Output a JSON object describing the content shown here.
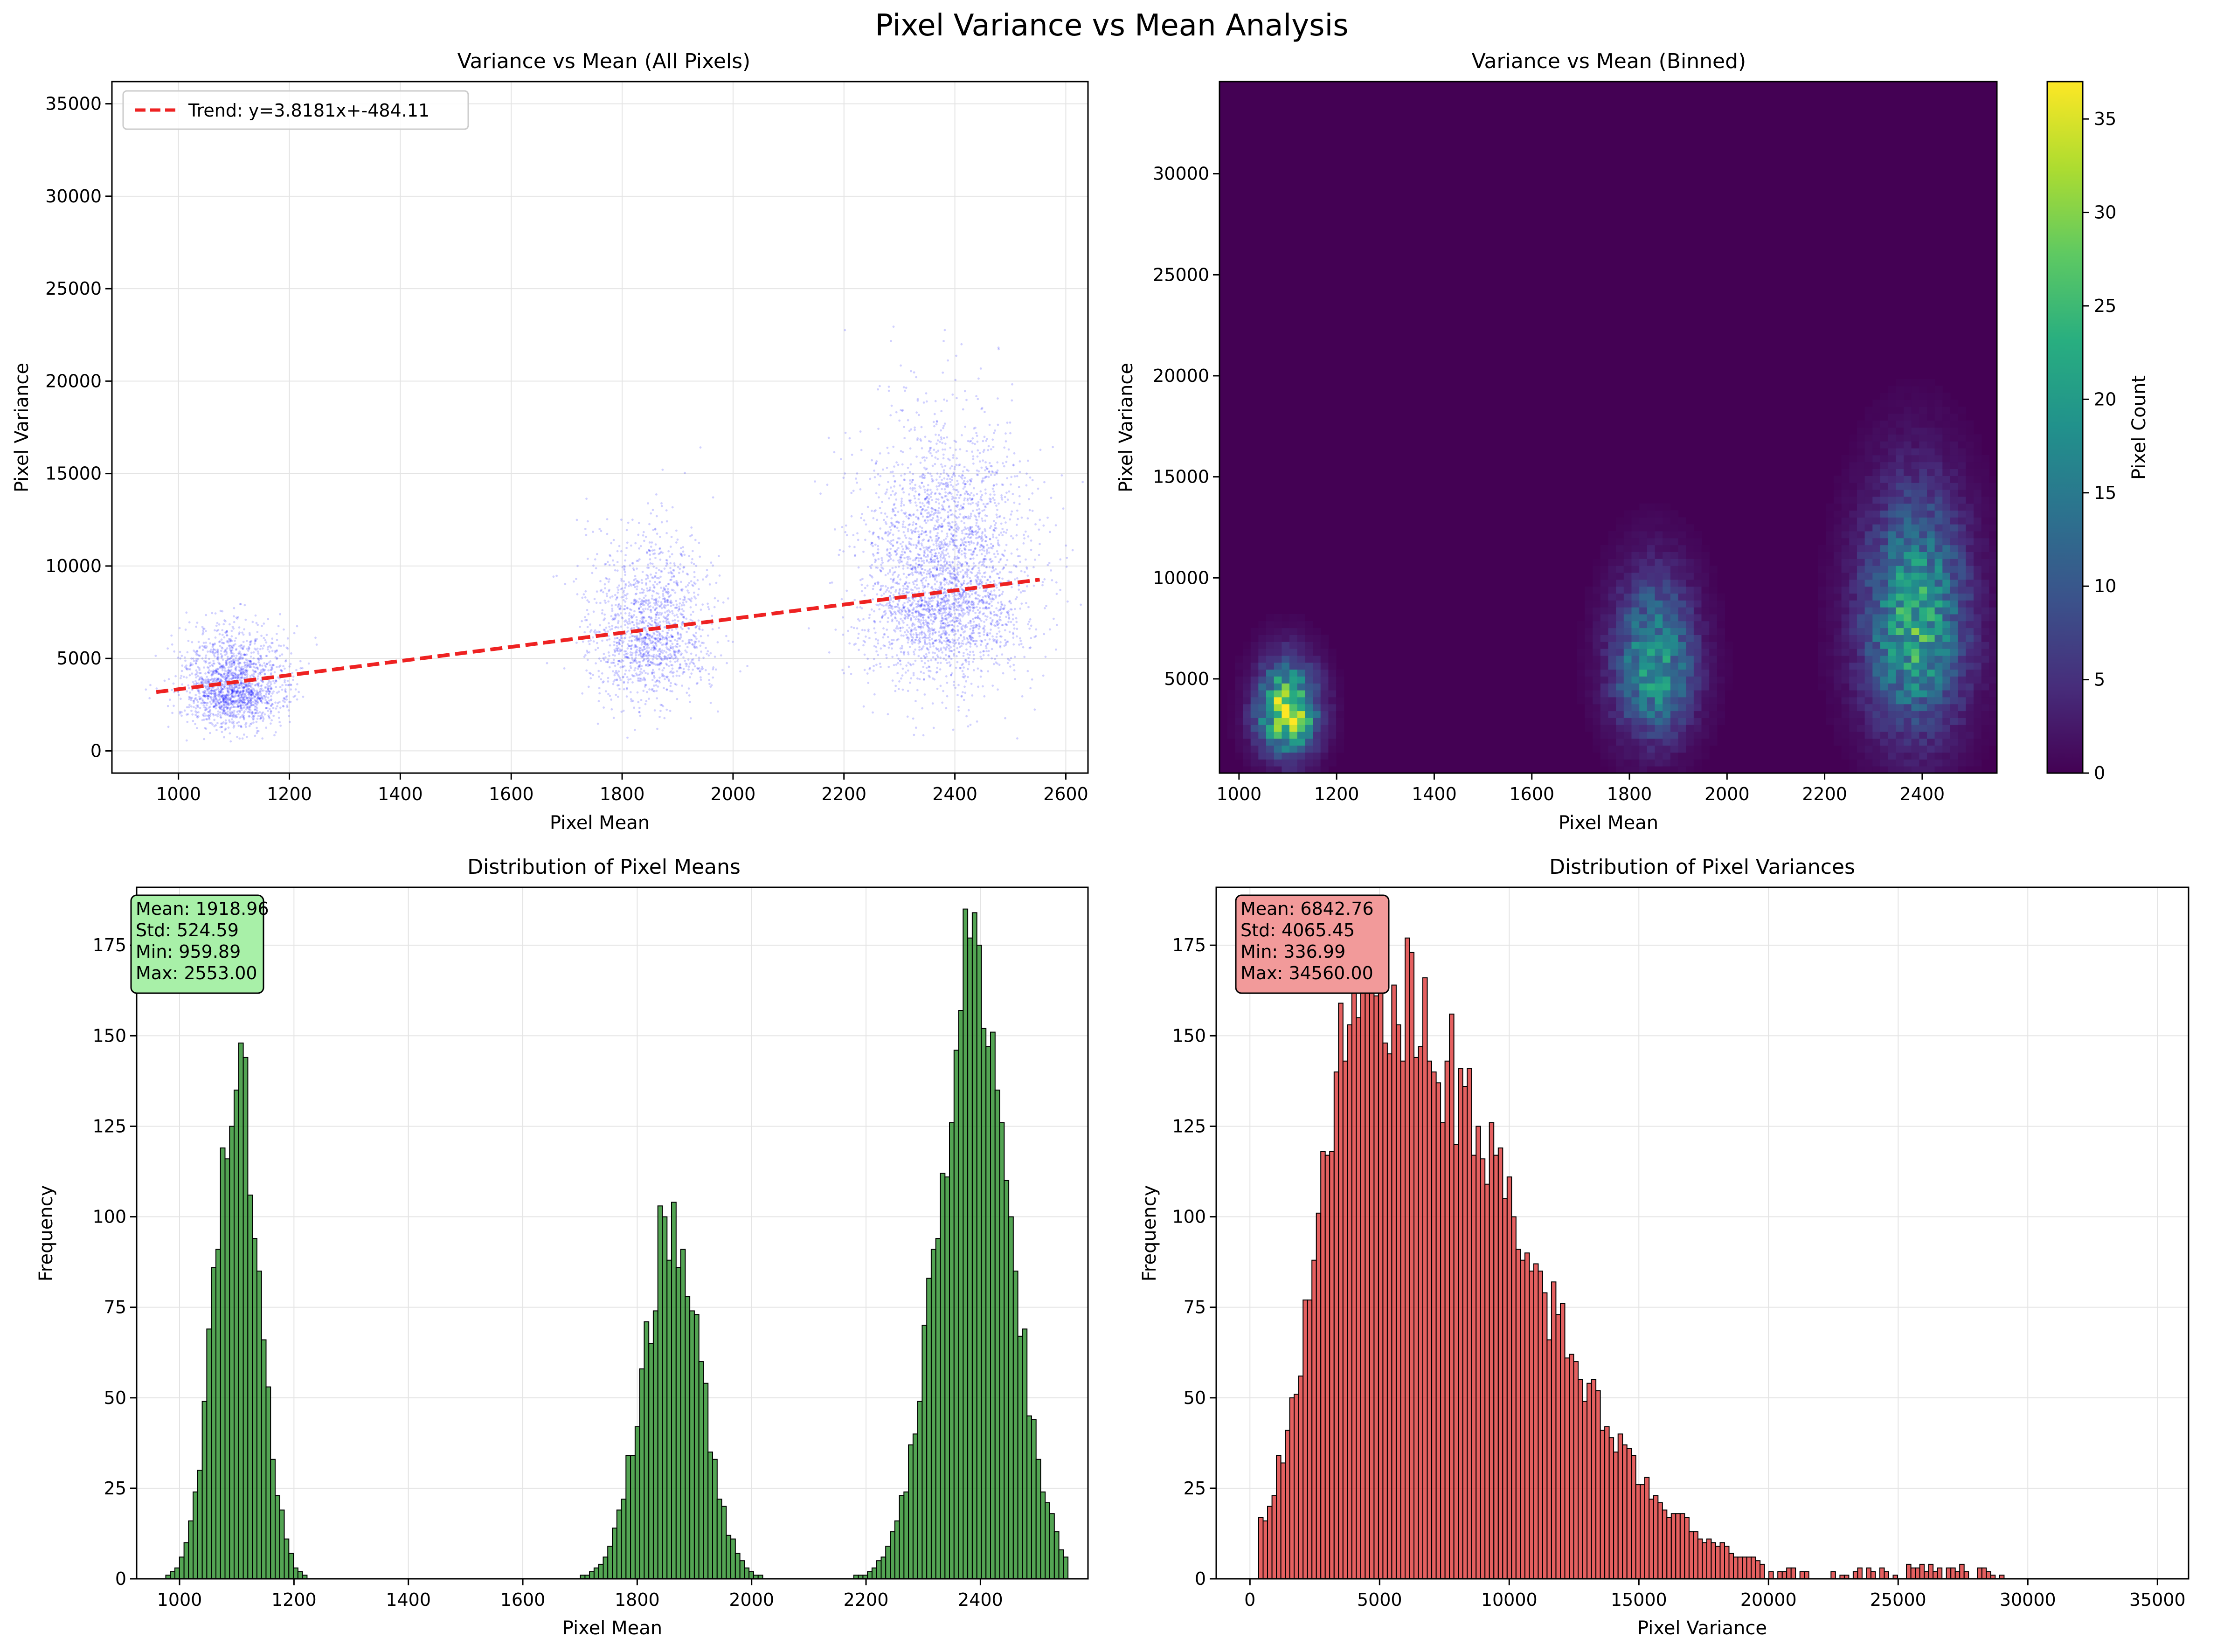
{
  "figure": {
    "title": "Pixel Variance vs Mean Analysis"
  },
  "chart_data": [
    {
      "type": "scatter",
      "title": "Variance vs Mean (All Pixels)",
      "xlabel": "Pixel Mean",
      "ylabel": "Pixel Variance",
      "xlim": [
        880,
        2640
      ],
      "ylim": [
        -1200,
        36200
      ],
      "xticks": [
        "1000",
        "1200",
        "1400",
        "1600",
        "1800",
        "2000",
        "2200",
        "2400",
        "2600"
      ],
      "yticks": [
        "0",
        "5000",
        "10000",
        "15000",
        "20000",
        "25000",
        "30000",
        "35000"
      ],
      "grid": true,
      "legend_position": "top-left",
      "point_color": "#0000ff",
      "clusters": [
        {
          "mean_center": 1100,
          "mean_spread": 45,
          "var_center": 3300,
          "var_spread": 1600,
          "count": 1800
        },
        {
          "mean_center": 1850,
          "mean_spread": 55,
          "var_center": 6200,
          "var_spread": 2800,
          "count": 1500
        },
        {
          "mean_center": 2380,
          "mean_spread": 75,
          "var_center": 8800,
          "var_spread": 4300,
          "count": 3200
        }
      ],
      "trend": {
        "label": "Trend: y=3.8181x+-484.11",
        "slope": 3.8181,
        "intercept": -484.11,
        "x_range": [
          960,
          2553
        ],
        "color": "#ee2222"
      }
    },
    {
      "type": "heatmap",
      "title": "Variance vs Mean (Binned)",
      "xlabel": "Pixel Mean",
      "ylabel": "Pixel Variance",
      "xlim": [
        960,
        2553
      ],
      "ylim": [
        337,
        34560
      ],
      "xticks": [
        "1000",
        "1200",
        "1400",
        "1600",
        "1800",
        "2000",
        "2200",
        "2400"
      ],
      "yticks": [
        "5000",
        "10000",
        "15000",
        "20000",
        "25000",
        "30000"
      ],
      "bins": 100,
      "colormap": "viridis",
      "colorbar": {
        "label": "Pixel Count",
        "range": [
          0,
          37
        ],
        "ticks": [
          "0",
          "5",
          "10",
          "15",
          "20",
          "25",
          "30",
          "35"
        ]
      },
      "clusters": [
        {
          "mean_center": 1100,
          "mean_spread": 40,
          "var_center": 3200,
          "var_spread": 1700,
          "peak": 37
        },
        {
          "mean_center": 1850,
          "mean_spread": 55,
          "var_center": 5500,
          "var_spread": 2900,
          "peak": 22
        },
        {
          "mean_center": 2385,
          "mean_spread": 70,
          "var_center": 7500,
          "var_spread": 4300,
          "peak": 25
        }
      ]
    },
    {
      "type": "bar",
      "title": "Distribution of Pixel Means",
      "xlabel": "Pixel Mean",
      "ylabel": "Frequency",
      "xlim": [
        925,
        2588
      ],
      "ylim": [
        0,
        191
      ],
      "xticks": [
        "1000",
        "1200",
        "1400",
        "1600",
        "1800",
        "2000",
        "2200",
        "2400"
      ],
      "yticks": [
        "0",
        "25",
        "50",
        "75",
        "100",
        "125",
        "150",
        "175"
      ],
      "bar_color": "#228b22",
      "bin_range": [
        960,
        2553
      ],
      "bins": 200,
      "components": [
        {
          "center": 1100,
          "sigma": 38,
          "peak": 145
        },
        {
          "center": 1860,
          "sigma": 50,
          "peak": 98
        },
        {
          "center": 2390,
          "sigma": 62,
          "peak": 172
        }
      ],
      "stats_box": [
        "Mean: 1918.96",
        "Std: 524.59",
        "Min: 959.89",
        "Max: 2553.00"
      ],
      "stats_box_color": "#a8f0a8"
    },
    {
      "type": "bar",
      "title": "Distribution of Pixel Variances",
      "xlabel": "Pixel Variance",
      "ylabel": "Frequency",
      "xlim": [
        -1300,
        36200
      ],
      "ylim": [
        0,
        191
      ],
      "xticks": [
        "0",
        "5000",
        "10000",
        "15000",
        "20000",
        "25000",
        "30000",
        "35000"
      ],
      "yticks": [
        "0",
        "25",
        "50",
        "75",
        "100",
        "125",
        "150",
        "175"
      ],
      "bar_color": "#dd3333",
      "bin_range": [
        337,
        34560
      ],
      "bins": 200,
      "shape": {
        "mode": 4600,
        "rise_sigma": 1900,
        "fall_sigma": 5600,
        "peak": 165,
        "tail_level": 4
      },
      "stats_box": [
        "Mean: 6842.76",
        "Std: 4065.45",
        "Min: 336.99",
        "Max: 34560.00"
      ],
      "stats_box_color": "#f29a9a"
    }
  ]
}
